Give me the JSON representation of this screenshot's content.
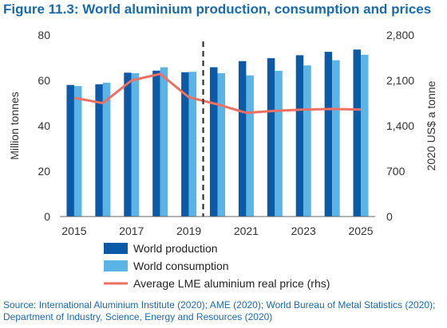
{
  "title": "Figure 11.3: World aluminium production, consumption and prices",
  "source": "Source: International Aluminium Institute (2020); AME (2020); World Bureau of Metal Statistics (2020); Department of Industry, Science, Energy and Resources (2020)",
  "colors": {
    "production": "#0b5aa8",
    "consumption": "#5ab4e5",
    "price": "#ef6f62",
    "title": "#1a6ab0"
  },
  "chart_data": {
    "type": "bar",
    "categories": [
      "2015",
      "2016",
      "2017",
      "2018",
      "2019",
      "2020",
      "2021",
      "2022",
      "2023",
      "2024",
      "2025"
    ],
    "x_tick_labels": [
      "2015",
      "2017",
      "2019",
      "2021",
      "2023",
      "2025"
    ],
    "series": [
      {
        "name": "World production",
        "type": "bar",
        "axis": "left",
        "values": [
          58,
          58.3,
          63.4,
          64.3,
          63.6,
          65.8,
          68.5,
          69.8,
          71.1,
          72.6,
          73.6
        ]
      },
      {
        "name": "World consumption",
        "type": "bar",
        "axis": "left",
        "values": [
          57.5,
          59,
          63.2,
          65.8,
          63.8,
          63.2,
          62.2,
          64.2,
          66.6,
          68.9,
          71.3
        ]
      },
      {
        "name": "Average LME aluminium real price (rhs)",
        "type": "line",
        "axis": "right",
        "values": [
          1830,
          1750,
          2100,
          2200,
          1840,
          1730,
          1600,
          1630,
          1650,
          1660,
          1650
        ]
      }
    ],
    "ylabel": "Million tonnes",
    "ylim": [
      0,
      80
    ],
    "yticks": [
      0,
      20,
      40,
      60,
      80
    ],
    "y2label": "2020 US$ a tonne",
    "y2lim": [
      0,
      2800
    ],
    "y2ticks": [
      "0",
      "700",
      "1,400",
      "2,100",
      "2,800"
    ],
    "forecast_divider_after": "2019",
    "legend_position": "bottom"
  }
}
